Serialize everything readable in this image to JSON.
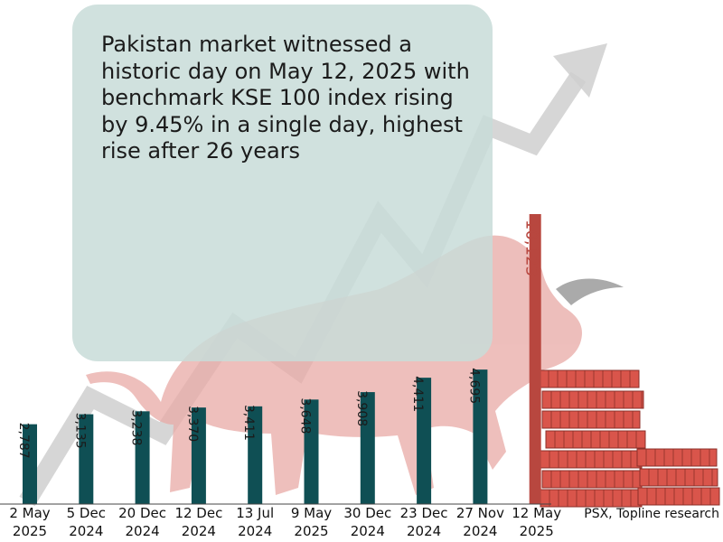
{
  "headline": "Pakistan market witnessed a historic day on May 12, 2025 with benchmark KSE 100 index rising by 9.45% in a single day, highest rise after 26 years",
  "source": "PSX, Topline research",
  "colors": {
    "bar": "#0f4f54",
    "highlight_bar": "#b8473f",
    "arrow": "#c9c9c9",
    "bull": "#e9aeaa",
    "bricks": "#d9554b"
  },
  "chart_data": {
    "type": "bar",
    "categories": [
      [
        "2 May",
        "2025"
      ],
      [
        "5 Dec",
        "2024"
      ],
      [
        "20 Dec",
        "2024"
      ],
      [
        "12 Dec",
        "2024"
      ],
      [
        "13 Jul",
        "2024"
      ],
      [
        "9 May",
        "2025"
      ],
      [
        "30 Dec",
        "2024"
      ],
      [
        "23 Dec",
        "2024"
      ],
      [
        "27 Nov",
        "2024"
      ],
      [
        "12 May",
        "2025"
      ]
    ],
    "values": [
      2787,
      3135,
      3238,
      3370,
      3411,
      3648,
      3908,
      4411,
      4695,
      10123
    ],
    "value_labels": [
      "2,787",
      "3,135",
      "3,238",
      "3,370",
      "3,411",
      "3,648",
      "3,908",
      "4,411",
      "4,695",
      "10,123"
    ],
    "highlight_index": 9,
    "title": "",
    "xlabel": "",
    "ylabel": "",
    "ylim": [
      0,
      10123
    ]
  }
}
